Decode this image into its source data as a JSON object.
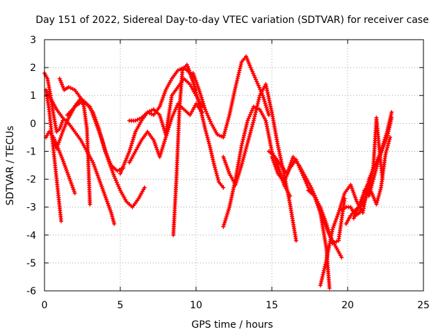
{
  "chart_data": {
    "type": "scatter",
    "title": "Day 151 of 2022, Sidereal Day-to-day VTEC variation (SDTVAR) for receiver case",
    "xlabel": "GPS time / hours",
    "ylabel": "SDTVAR / TECUs",
    "xlim": [
      0,
      25
    ],
    "ylim": [
      -6,
      3
    ],
    "xticks": [
      0,
      5,
      10,
      15,
      20,
      25
    ],
    "yticks": [
      -6,
      -5,
      -4,
      -3,
      -2,
      -1,
      0,
      1,
      2,
      3
    ],
    "grid": true,
    "marker": "plus",
    "color": "#ff0000",
    "series": [
      {
        "x": [
          0.1,
          0.3,
          0.5,
          0.7,
          0.9,
          1.1
        ],
        "y": [
          1.2,
          0.5,
          -0.5,
          -1.5,
          -2.5,
          -3.5
        ]
      },
      {
        "x": [
          0.1,
          0.3,
          0.6,
          0.9,
          1.2,
          1.6,
          2.0
        ],
        "y": [
          -0.5,
          -0.3,
          -0.5,
          -0.9,
          -1.3,
          -1.9,
          -2.5
        ]
      },
      {
        "x": [
          0.0,
          0.2,
          0.4,
          0.6,
          0.8,
          1.0,
          1.2
        ],
        "y": [
          1.8,
          1.6,
          1.0,
          0.3,
          -0.3,
          -0.2,
          0.1
        ]
      },
      {
        "x": [
          0.2,
          0.5,
          0.8,
          1.2,
          1.6,
          2.0,
          2.4,
          2.8,
          3.2,
          3.6,
          4.0,
          4.4,
          4.6
        ],
        "y": [
          1.1,
          0.8,
          0.5,
          0.2,
          0.0,
          -0.3,
          -0.6,
          -1.0,
          -1.4,
          -2.0,
          -2.6,
          -3.2,
          -3.6
        ]
      },
      {
        "x": [
          0.5,
          0.8,
          1.0,
          1.2,
          1.5,
          1.8,
          2.1,
          2.4,
          2.6,
          2.8,
          3.0
        ],
        "y": [
          -0.5,
          -0.9,
          -0.6,
          -0.3,
          0.1,
          0.4,
          0.7,
          0.9,
          0.6,
          -0.2,
          -2.9
        ]
      },
      {
        "x": [
          1.0,
          1.3,
          1.6,
          2.0,
          2.4,
          2.8,
          3.2,
          3.6,
          4.0,
          4.4,
          4.8,
          5.2
        ],
        "y": [
          1.6,
          1.2,
          1.3,
          1.2,
          0.9,
          0.7,
          0.4,
          -0.2,
          -1.0,
          -1.5,
          -1.7,
          -1.6
        ]
      },
      {
        "x": [
          1.5,
          2.0,
          2.5,
          3.0,
          3.4,
          3.8,
          4.2,
          4.6,
          5.0,
          5.4,
          5.8,
          6.2,
          6.6
        ],
        "y": [
          0.3,
          0.6,
          0.8,
          0.6,
          0.0,
          -0.6,
          -1.3,
          -1.9,
          -2.4,
          -2.8,
          -3.0,
          -2.7,
          -2.3
        ]
      },
      {
        "x": [
          5.0,
          5.3,
          5.6,
          6.0,
          6.4,
          6.8,
          7.2,
          7.6,
          8.0,
          8.4,
          8.8,
          9.2,
          9.6,
          10.0,
          10.4
        ],
        "y": [
          -1.8,
          -1.4,
          -1.0,
          -0.3,
          0.1,
          0.4,
          0.5,
          0.3,
          -0.4,
          1.0,
          1.3,
          1.6,
          1.4,
          1.0,
          0.6
        ]
      },
      {
        "x": [
          5.6,
          6.0,
          6.4,
          6.8,
          7.2,
          7.6,
          8.0,
          8.4,
          8.8,
          9.2,
          9.6,
          10.0
        ],
        "y": [
          0.1,
          0.1,
          0.2,
          0.4,
          0.3,
          0.6,
          1.2,
          1.6,
          1.9,
          2.0,
          1.8,
          1.2
        ]
      },
      {
        "x": [
          5.6,
          6.0,
          6.4,
          6.8,
          7.2,
          7.6,
          8.0,
          8.4,
          8.8,
          9.2,
          9.6,
          10.0,
          10.4
        ],
        "y": [
          -1.4,
          -1.0,
          -0.6,
          -0.3,
          -0.6,
          -1.2,
          -0.5,
          0.2,
          0.7,
          0.5,
          0.3,
          0.7,
          0.4
        ]
      },
      {
        "x": [
          8.5,
          8.7,
          8.9,
          9.1,
          9.4,
          9.7,
          10.0,
          10.3,
          10.6,
          10.9,
          11.2,
          11.5,
          11.8
        ],
        "y": [
          -4.0,
          -2.0,
          0.5,
          1.9,
          2.1,
          1.7,
          1.1,
          0.5,
          -0.2,
          -0.8,
          -1.5,
          -2.1,
          -2.3
        ]
      },
      {
        "x": [
          9.8,
          10.2,
          10.6,
          11.0,
          11.4,
          11.8,
          12.2,
          12.6,
          13.0,
          13.3,
          13.6,
          14.0,
          14.4,
          14.8
        ],
        "y": [
          1.8,
          1.2,
          0.5,
          0.0,
          -0.4,
          -0.5,
          0.3,
          1.3,
          2.2,
          2.4,
          2.0,
          1.5,
          1.0,
          0.3
        ]
      },
      {
        "x": [
          11.8,
          12.2,
          12.6,
          13.0,
          13.4,
          13.8,
          14.2,
          14.6,
          15.0,
          15.4,
          15.8,
          16.2
        ],
        "y": [
          -3.7,
          -3.0,
          -2.0,
          -0.8,
          0.1,
          0.6,
          0.5,
          0.1,
          -1.0,
          -1.5,
          -2.2,
          -2.6
        ]
      },
      {
        "x": [
          11.8,
          12.2,
          12.6,
          13.0,
          13.4,
          13.8,
          14.2,
          14.6,
          15.0,
          15.4,
          15.8,
          16.2,
          16.6
        ],
        "y": [
          -1.2,
          -1.8,
          -2.2,
          -1.5,
          -0.7,
          0.1,
          1.0,
          1.4,
          0.4,
          -0.8,
          -1.8,
          -2.9,
          -4.2
        ]
      },
      {
        "x": [
          14.8,
          15.2,
          15.6,
          16.0,
          16.4,
          16.8,
          17.2,
          17.6,
          18.0,
          18.4,
          18.8,
          19.2,
          19.6
        ],
        "y": [
          -1.0,
          -1.2,
          -1.5,
          -1.8,
          -1.2,
          -1.5,
          -1.9,
          -2.3,
          -2.8,
          -3.5,
          -4.0,
          -4.4,
          -4.8
        ]
      },
      {
        "x": [
          15.0,
          15.4,
          15.8,
          16.2,
          16.6,
          17.0,
          17.4,
          17.8,
          18.2,
          18.6,
          18.8
        ],
        "y": [
          -1.2,
          -1.8,
          -2.1,
          -1.6,
          -1.3,
          -1.8,
          -2.3,
          -2.6,
          -3.2,
          -4.5,
          -5.9
        ]
      },
      {
        "x": [
          17.4,
          17.8,
          18.2,
          18.6,
          19.0,
          19.4,
          19.8
        ],
        "y": [
          -2.4,
          -2.6,
          -3.0,
          -3.6,
          -4.3,
          -4.2,
          -2.7
        ]
      },
      {
        "x": [
          18.2,
          18.6,
          19.0,
          19.4,
          19.8,
          20.2,
          20.6,
          21.0,
          21.4,
          21.8,
          22.2,
          22.6,
          22.9
        ],
        "y": [
          -5.8,
          -4.9,
          -3.8,
          -3.2,
          -2.5,
          -2.2,
          -2.8,
          -3.2,
          -2.0,
          -1.5,
          -1.0,
          -0.3,
          0.4
        ]
      },
      {
        "x": [
          19.6,
          19.9,
          20.2,
          20.5,
          20.8,
          21.1,
          21.4,
          21.7,
          22.0,
          22.3,
          22.6,
          22.9
        ],
        "y": [
          -3.1,
          -3.0,
          -3.0,
          -3.3,
          -3.2,
          -2.4,
          -2.6,
          -2.0,
          -1.4,
          -0.9,
          -0.5,
          0.2
        ]
      },
      {
        "x": [
          19.9,
          20.2,
          20.5,
          20.8,
          21.1,
          21.4,
          21.7,
          21.9,
          22.1,
          22.3
        ],
        "y": [
          -3.6,
          -3.3,
          -3.1,
          -3.0,
          -2.8,
          -2.4,
          -1.5,
          0.2,
          -1.0,
          -2.0
        ]
      },
      {
        "x": [
          20.4,
          20.7,
          21.0,
          21.3,
          21.6,
          21.9,
          22.2,
          22.5,
          22.8
        ],
        "y": [
          -3.4,
          -3.0,
          -2.6,
          -2.2,
          -2.5,
          -2.9,
          -2.3,
          -1.1,
          -0.5
        ]
      }
    ]
  }
}
